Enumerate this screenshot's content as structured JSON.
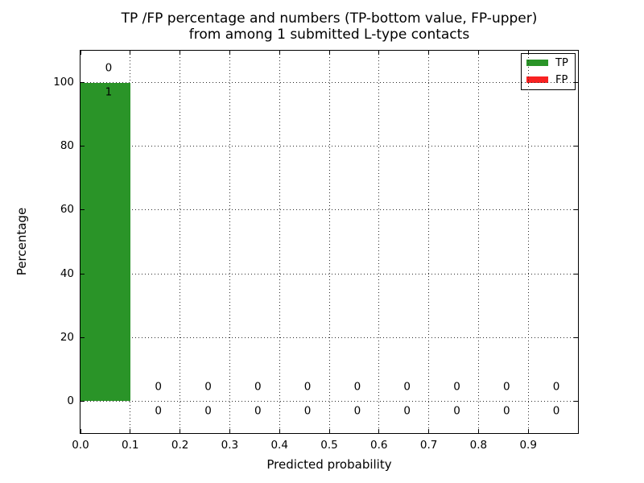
{
  "chart_data": {
    "type": "bar",
    "title_lines": [
      "TP /FP percentage and numbers (TP-bottom value, FP-upper)",
      "from among 1 submitted L-type contacts"
    ],
    "xlabel": "Predicted probability",
    "ylabel": "Percentage",
    "xlim": [
      0.0,
      1.0
    ],
    "ylim": [
      -10,
      110
    ],
    "xtick_values": [
      0.0,
      0.1,
      0.2,
      0.3,
      0.4,
      0.5,
      0.6,
      0.7,
      0.8,
      0.9
    ],
    "xtick_labels": [
      "0.0",
      "0.1",
      "0.2",
      "0.3",
      "0.4",
      "0.5",
      "0.6",
      "0.7",
      "0.8",
      "0.9"
    ],
    "ytick_values": [
      0,
      20,
      40,
      60,
      80,
      100
    ],
    "ytick_labels": [
      "0",
      "20",
      "40",
      "60",
      "80",
      "100"
    ],
    "grid": "dotted",
    "bar_width": 0.1,
    "bin_starts": [
      0.0,
      0.1,
      0.2,
      0.3,
      0.4,
      0.5,
      0.6,
      0.7,
      0.8,
      0.9
    ],
    "series": [
      {
        "name": "TP",
        "color": "#2a9428",
        "label_row": "bottom",
        "pct": [
          100,
          0,
          0,
          0,
          0,
          0,
          0,
          0,
          0,
          0
        ],
        "counts": [
          1,
          0,
          0,
          0,
          0,
          0,
          0,
          0,
          0,
          0
        ]
      },
      {
        "name": "FP",
        "color": "#f82222",
        "label_row": "upper",
        "pct": [
          0,
          0,
          0,
          0,
          0,
          0,
          0,
          0,
          0,
          0
        ],
        "counts": [
          0,
          0,
          0,
          0,
          0,
          0,
          0,
          0,
          0,
          0
        ]
      }
    ],
    "legend": {
      "position": "upper right",
      "items": [
        {
          "label": "TP",
          "color": "#2a9428"
        },
        {
          "label": "FP",
          "color": "#f82222"
        }
      ]
    },
    "colors": {
      "frame": "#000000",
      "text": "#000000",
      "background": "#ffffff"
    }
  },
  "title": {
    "line1": "TP /FP percentage and numbers (TP-bottom value, FP-upper)",
    "line2": "from among 1 submitted L-type contacts"
  },
  "axes": {
    "xlabel": "Predicted probability",
    "ylabel": "Percentage"
  }
}
